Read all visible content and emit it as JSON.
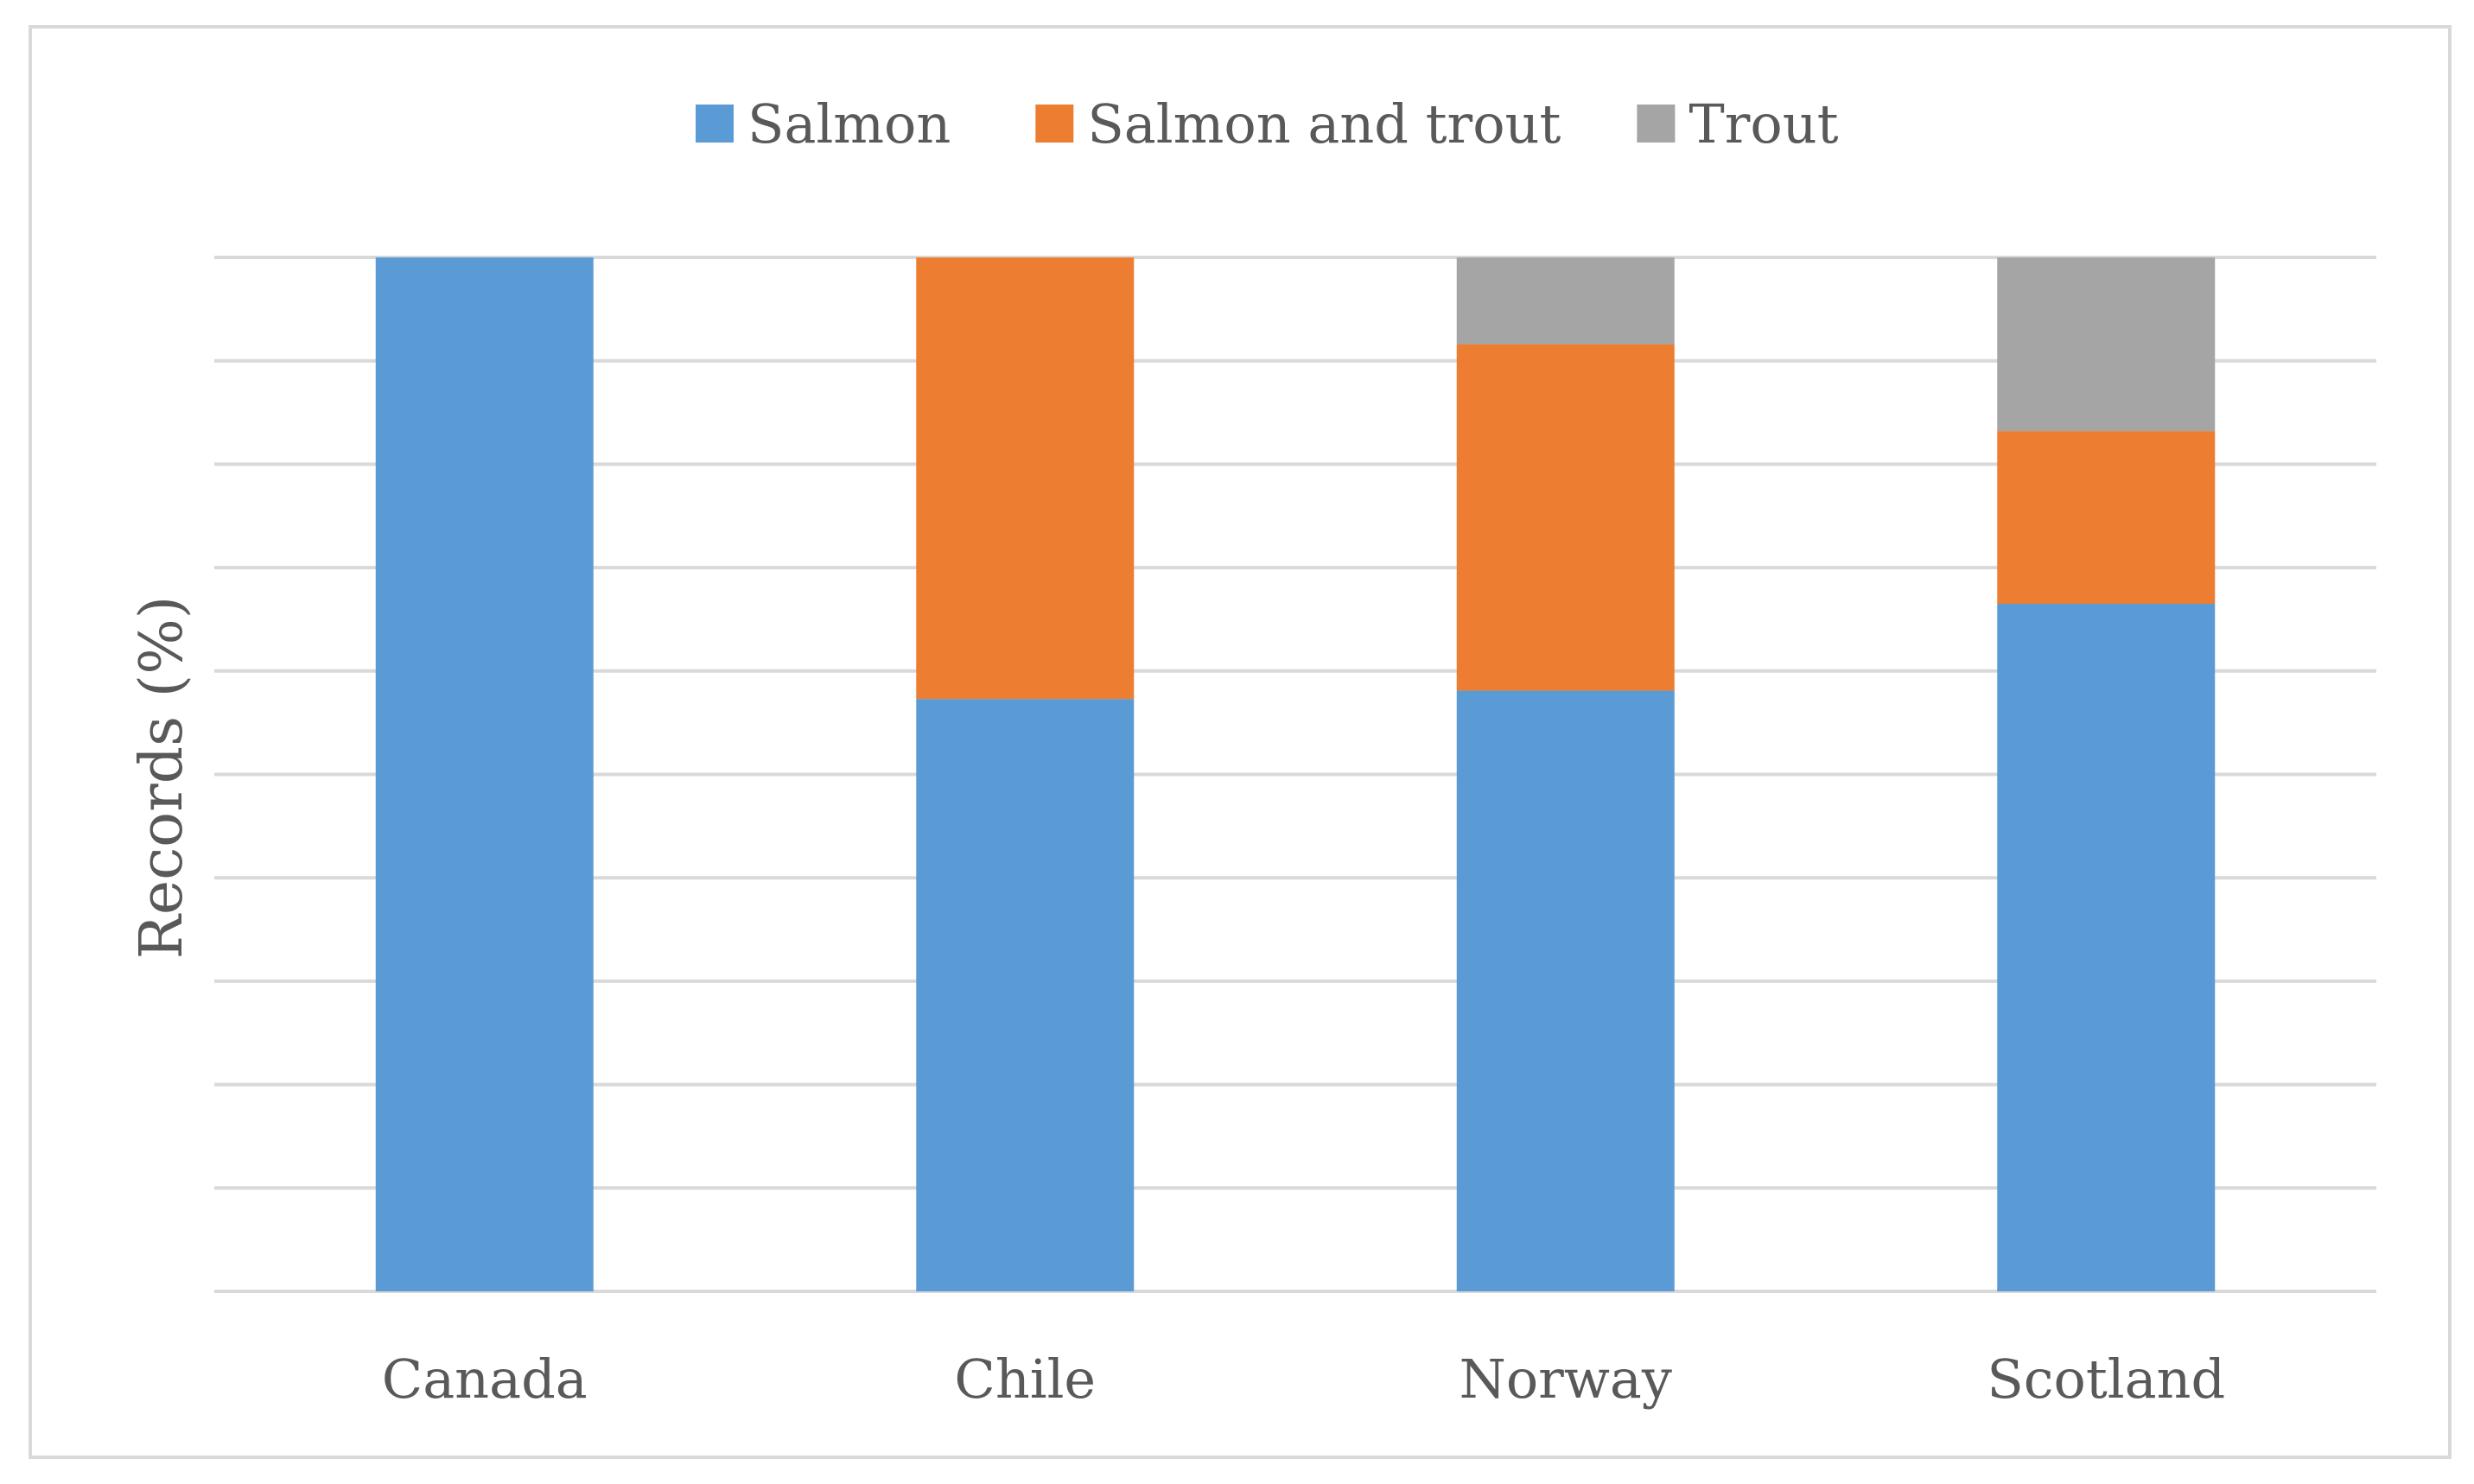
{
  "chart_data": {
    "type": "bar",
    "stacked": true,
    "categories": [
      "Canada",
      "Chile",
      "Norway",
      "Scotland"
    ],
    "series": [
      {
        "name": "Salmon",
        "values": [
          100,
          57.3,
          58.1,
          66.5
        ],
        "color": "#5b9bd5"
      },
      {
        "name": "Salmon and trout",
        "values": [
          0,
          42.7,
          33.5,
          16.7
        ],
        "color": "#ed7d31"
      },
      {
        "name": "Trout",
        "values": [
          0,
          0,
          8.4,
          16.8
        ],
        "color": "#a5a5a5"
      }
    ],
    "ylabel": "Records (%)",
    "xlabel": "",
    "ylim": [
      0,
      100
    ],
    "ytick_step": 10,
    "show_ytick_labels": false,
    "grid": true,
    "grid_color": "#d9d9d9",
    "legend_position": "top"
  }
}
